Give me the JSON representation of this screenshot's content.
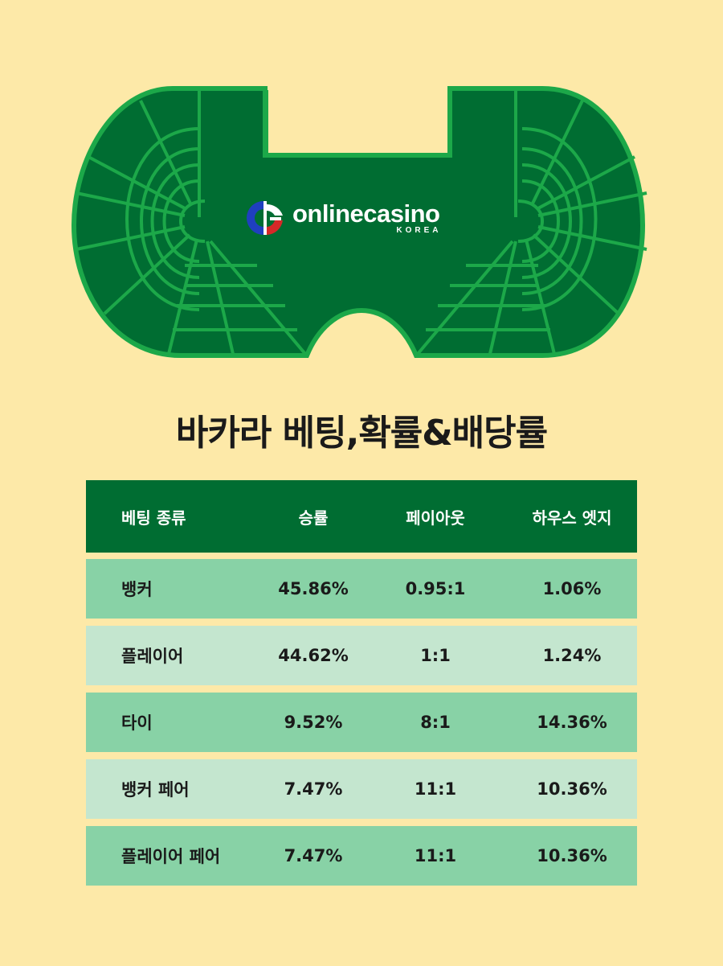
{
  "logo": {
    "wordmark": "onlinecasino",
    "sub": "KOREA"
  },
  "title": "바카라 베팅,확률&배당률",
  "table": {
    "headers": [
      "베팅 종류",
      "승률",
      "페이아웃",
      "하우스 엣지"
    ],
    "rows": [
      [
        "뱅커",
        "45.86%",
        "0.95:1",
        "1.06%"
      ],
      [
        "플레이어",
        "44.62%",
        "1:1",
        "1.24%"
      ],
      [
        "타이",
        "9.52%",
        "8:1",
        "14.36%"
      ],
      [
        "뱅커 페어",
        "7.47%",
        "11:1",
        "10.36%"
      ],
      [
        "플레이어 페어",
        "7.47%",
        "11:1",
        "10.36%"
      ]
    ]
  },
  "colors": {
    "background": "#fde9a8",
    "felt": "#006d32",
    "felt_border": "#1ca849",
    "header_bg": "#006d32",
    "row_dark": "#88d2a6",
    "row_light": "#c4e6cf"
  },
  "icons": [
    "baccarat-table-icon",
    "oc-logo-icon"
  ]
}
